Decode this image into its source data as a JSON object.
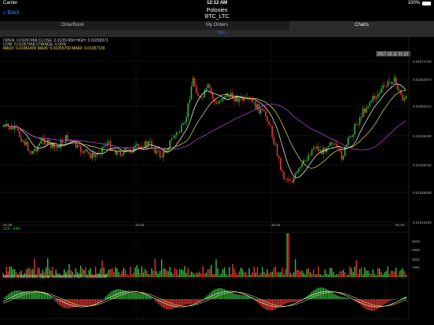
{
  "status": {
    "carrier": "Carrier",
    "time": "12:12 AM",
    "battery": "100%"
  },
  "nav": {
    "back_label": "Back",
    "title": "Poloniex",
    "subtitle": "BTC_LTC"
  },
  "tabs": [
    {
      "label": "OrderBook"
    },
    {
      "label": "My Orders"
    },
    {
      "label": "Charts"
    }
  ],
  "period_label": "15m",
  "colors": {
    "up": "#2fb33b",
    "down": "#e0362f",
    "ma5": "#ffffff",
    "ma10": "#e8e05a",
    "ma30": "#c546e6",
    "vol": "#3cba3c"
  },
  "info": {
    "line1": "OPEN: 0.01057458  CLOSE: 0.01057458  HIGH: 0.01058371",
    "line2": "LOW: 0.01057458  CHANGE: 0.00%",
    "line3": "MA10: 0.01061400  MA30: 0.01055700  MA60: 0.01057100"
  },
  "crosshair_date": "2017-10-11 01:10",
  "price_axis": [
    "0.01074726",
    "0.01064970",
    "0.01052214",
    "0.01045458",
    "0.01036702",
    "0.01025946",
    "0.01016190"
  ],
  "time_axis": [
    "01:35",
    "13:20",
    "16:15",
    "01:10"
  ],
  "volume": {
    "label": "VOL: 444",
    "axis": [
      "6643",
      "4982",
      "3321",
      "1661"
    ]
  },
  "macd": {
    "label": "MACD: 0.00002600  Signal: 0.00003600  HIST: -0.00003600"
  }
}
